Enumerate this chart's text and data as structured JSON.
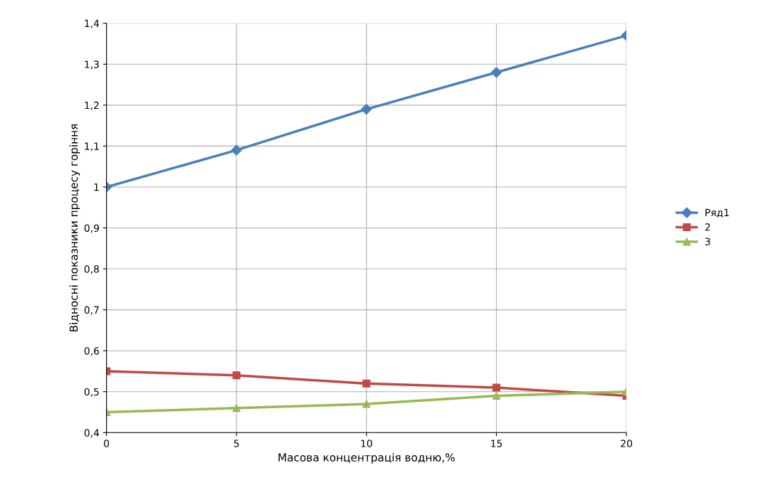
{
  "chart_data": {
    "type": "line",
    "xlabel": "Масова концентрація водню,%",
    "ylabel": "Відносні показники процесу горіння",
    "x": [
      0,
      5,
      10,
      15,
      20
    ],
    "series": [
      {
        "name": "Ряд1",
        "color": "#4a7ebb",
        "marker": "diamond",
        "values": [
          1.0,
          1.09,
          1.19,
          1.28,
          1.37
        ]
      },
      {
        "name": "2",
        "color": "#be4b48",
        "marker": "square",
        "values": [
          0.55,
          0.54,
          0.52,
          0.51,
          0.49
        ]
      },
      {
        "name": "3",
        "color": "#98b954",
        "marker": "triangle",
        "values": [
          0.45,
          0.46,
          0.47,
          0.49,
          0.5
        ]
      }
    ],
    "xlim": [
      0,
      20
    ],
    "xticks": [
      0,
      5,
      10,
      15,
      20
    ],
    "ylim": [
      0.4,
      1.4
    ],
    "yticks": [
      {
        "value": 0.4,
        "label": "0,4"
      },
      {
        "value": 0.5,
        "label": "0,5"
      },
      {
        "value": 0.6,
        "label": "0,6"
      },
      {
        "value": 0.7,
        "label": "0,7"
      },
      {
        "value": 0.8,
        "label": "0,8"
      },
      {
        "value": 0.9,
        "label": "0,9"
      },
      {
        "value": 1,
        "label": "1"
      },
      {
        "value": 1.1,
        "label": "1,1"
      },
      {
        "value": 1.2,
        "label": "1,2"
      },
      {
        "value": 1.3,
        "label": "1,3"
      },
      {
        "value": 1.4,
        "label": "1,4"
      }
    ],
    "grid": true,
    "legend": "right",
    "line_style": "solid"
  }
}
